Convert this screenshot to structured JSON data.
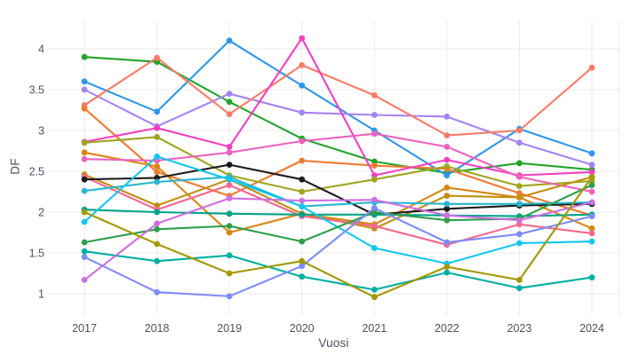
{
  "figure": {
    "background": "#ffffff",
    "grid_color": "#ebebeb",
    "tick_color": "#4a5263",
    "axis_title_color": "#4a5263"
  },
  "chart_data": {
    "type": "line",
    "mode": "lines+markers",
    "title": "",
    "xlabel": "Vuosi",
    "ylabel": "DF",
    "legend": "none",
    "grid": true,
    "x": [
      2017,
      2018,
      2019,
      2020,
      2021,
      2022,
      2023,
      2024
    ],
    "x_tick_labels": [
      "2017",
      "2018",
      "2019",
      "2020",
      "2021",
      "2022",
      "2023",
      "2024"
    ],
    "y_ticks": [
      1,
      1.5,
      2,
      2.5,
      3,
      3.5,
      4
    ],
    "y_tick_labels": [
      "1",
      "1.5",
      "2",
      "2.5",
      "3",
      "3.5",
      "4"
    ],
    "xlim": [
      2016.5,
      2024.6
    ],
    "ylim": [
      0.72,
      4.35
    ],
    "series": [
      {
        "name": "series-01-green",
        "color": "#23A42A",
        "values": [
          3.9,
          3.84,
          3.35,
          2.9,
          2.62,
          2.48,
          2.6,
          2.52
        ]
      },
      {
        "name": "series-02-blue",
        "color": "#2E96EA",
        "values": [
          3.6,
          3.23,
          4.1,
          3.55,
          3.0,
          2.45,
          3.02,
          2.72
        ]
      },
      {
        "name": "series-03-lavender",
        "color": "#A583F2",
        "values": [
          3.5,
          3.05,
          3.45,
          3.22,
          3.19,
          3.17,
          2.85,
          2.58
        ]
      },
      {
        "name": "series-04-salmon",
        "color": "#F97B67",
        "values": [
          3.31,
          3.89,
          3.2,
          3.8,
          3.43,
          2.94,
          3.0,
          3.77
        ]
      },
      {
        "name": "series-05-orange",
        "color": "#EE7B30",
        "values": [
          3.27,
          2.49,
          2.2,
          2.63,
          2.57,
          2.53,
          2.23,
          1.96
        ]
      },
      {
        "name": "series-06-hotpink",
        "color": "#F340C0",
        "values": [
          2.86,
          3.03,
          2.8,
          4.13,
          2.45,
          2.64,
          2.45,
          2.49
        ]
      },
      {
        "name": "series-07-olivegreen",
        "color": "#9FA61F",
        "values": [
          2.85,
          2.92,
          2.45,
          2.25,
          2.4,
          2.56,
          2.32,
          2.38
        ]
      },
      {
        "name": "series-08-darkorange",
        "color": "#D98614",
        "values": [
          2.73,
          2.56,
          1.75,
          1.98,
          1.85,
          2.3,
          2.18,
          1.8
        ]
      },
      {
        "name": "series-09-magenta",
        "color": "#EC63BE",
        "values": [
          2.65,
          2.63,
          2.73,
          2.87,
          2.96,
          2.8,
          2.43,
          2.25
        ]
      },
      {
        "name": "series-10-goldenrod",
        "color": "#C18F10",
        "values": [
          2.46,
          2.08,
          2.4,
          1.98,
          1.8,
          2.2,
          2.18,
          2.43
        ]
      },
      {
        "name": "series-11-pink",
        "color": "#F4688F",
        "values": [
          2.43,
          2.03,
          2.33,
          1.95,
          1.83,
          1.6,
          1.85,
          1.74
        ]
      },
      {
        "name": "series-12-black",
        "color": "#1C1C1C",
        "values": [
          2.4,
          2.42,
          2.58,
          2.4,
          1.97,
          2.04,
          2.08,
          2.1
        ]
      },
      {
        "name": "series-13-cyanflat",
        "color": "#29B6CE",
        "values": [
          2.26,
          2.37,
          2.43,
          2.07,
          2.12,
          2.1,
          2.1,
          2.12
        ]
      },
      {
        "name": "series-14-tealflat",
        "color": "#00A389",
        "values": [
          2.03,
          2.0,
          1.98,
          1.97,
          1.97,
          1.96,
          1.95,
          1.97
        ]
      },
      {
        "name": "series-15-cyan",
        "color": "#12C6EF",
        "values": [
          1.88,
          2.68,
          2.4,
          2.07,
          1.56,
          1.37,
          1.62,
          1.64
        ]
      },
      {
        "name": "series-16-forestgreen",
        "color": "#2E9E4B",
        "values": [
          1.63,
          1.79,
          1.83,
          1.64,
          2.0,
          1.9,
          1.92,
          2.33
        ]
      },
      {
        "name": "series-17-teal",
        "color": "#00AFA0",
        "values": [
          1.52,
          1.4,
          1.47,
          1.21,
          1.05,
          1.26,
          1.07,
          1.2
        ]
      },
      {
        "name": "series-18-periwinkle",
        "color": "#7C8CF8",
        "values": [
          1.45,
          1.02,
          0.97,
          1.34,
          2.05,
          1.63,
          1.73,
          1.95
        ]
      },
      {
        "name": "series-19-orchid",
        "color": "#CD6FE0",
        "values": [
          1.17,
          1.86,
          2.17,
          2.14,
          2.15,
          1.96,
          1.9,
          2.12
        ]
      },
      {
        "name": "series-20-olive",
        "color": "#A39800",
        "values": [
          2.0,
          1.61,
          1.25,
          1.4,
          0.96,
          1.33,
          1.17,
          2.43
        ]
      }
    ]
  }
}
